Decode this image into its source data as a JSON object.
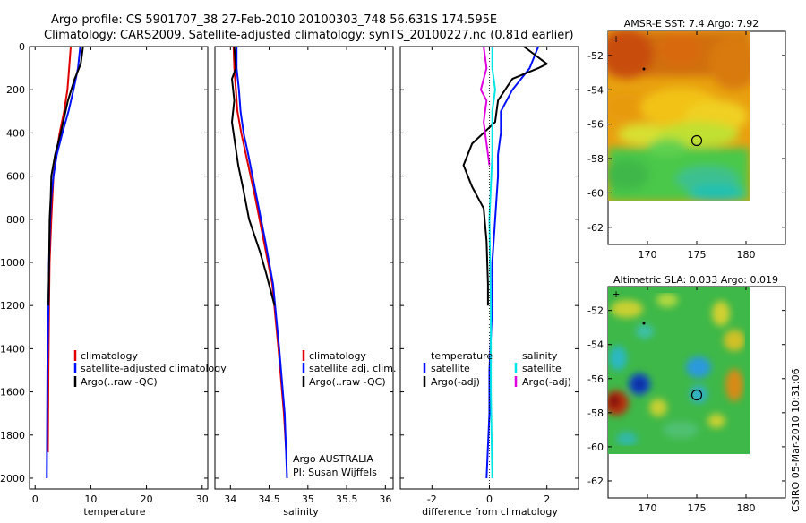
{
  "header": {
    "line1": "Argo profile: CS 5901707_38 27-Feb-2010 20100303_748 56.631S 174.595E",
    "line2": "Climatology: CARS2009. Satellite-adjusted climatology: synTS_20100227.nc (0.81d earlier)"
  },
  "side_stamp": "CSIRO 05-Mar-2010 10:31:06",
  "colors": {
    "climatology": "#e00000",
    "satellite": "#0010ff",
    "argo": "#000000",
    "satellite_salinity": "#00e5e5",
    "argo_salinity": "#e000e0"
  },
  "chart_data": [
    {
      "type": "line",
      "xlabel": "temperature",
      "xlim": [
        -1,
        31
      ],
      "ylim": [
        0,
        2050
      ],
      "y_reversed": true,
      "xticks": [
        0,
        10,
        20,
        30
      ],
      "yticks": [
        0,
        200,
        400,
        600,
        800,
        1000,
        1200,
        1400,
        1600,
        1800,
        2000
      ],
      "legend_placement": "lower-left",
      "legend": [
        "climatology",
        "satellite-adjusted climatology",
        "Argo(..raw -QC)"
      ],
      "series": [
        {
          "name": "climatology",
          "color": "#e00000",
          "x": [
            6.4,
            6.1,
            5.8,
            5.2,
            4.4,
            3.8,
            3.3,
            3.1,
            2.9,
            2.6,
            2.5,
            2.4,
            2.3
          ],
          "y": [
            0,
            100,
            200,
            300,
            400,
            500,
            600,
            700,
            800,
            1000,
            1200,
            1500,
            1880
          ]
        },
        {
          "name": "satellite-adjusted climatology",
          "color": "#0010ff",
          "x": [
            8.1,
            7.7,
            6.9,
            6.0,
            4.9,
            3.9,
            3.3,
            2.9,
            2.7,
            2.5,
            2.4,
            2.2,
            2.1
          ],
          "y": [
            0,
            100,
            200,
            300,
            400,
            500,
            600,
            700,
            800,
            1000,
            1200,
            1500,
            2000
          ]
        },
        {
          "name": "Argo(..raw -QC)",
          "color": "#000000",
          "x": [
            8.6,
            8.2,
            7.1,
            5.9,
            4.6,
            3.6,
            2.9,
            2.8,
            2.6,
            2.5,
            2.4
          ],
          "y": [
            0,
            80,
            150,
            250,
            400,
            500,
            600,
            700,
            800,
            1000,
            1200
          ]
        }
      ]
    },
    {
      "type": "line",
      "xlabel": "salinity",
      "xlim": [
        33.8,
        36.1
      ],
      "ylim": [
        0,
        2050
      ],
      "y_reversed": true,
      "xticks": [
        34,
        34.5,
        35,
        35.5,
        36
      ],
      "legend_placement": "lower-right",
      "legend": [
        "climatology",
        "satellite adj. clim.",
        "Argo(..raw -QC)"
      ],
      "annotation": [
        "Argo AUSTRALIA",
        "PI: Susan Wijffels"
      ],
      "series": [
        {
          "name": "climatology",
          "color": "#e00000",
          "x": [
            34.04,
            34.05,
            34.07,
            34.09,
            34.14,
            34.2,
            34.32,
            34.43,
            34.54,
            34.62,
            34.69,
            34.72
          ],
          "y": [
            0,
            100,
            200,
            300,
            400,
            500,
            700,
            900,
            1100,
            1400,
            1700,
            1880
          ]
        },
        {
          "name": "satellite adj. clim.",
          "color": "#0010ff",
          "x": [
            34.08,
            34.08,
            34.11,
            34.13,
            34.17,
            34.23,
            34.34,
            34.45,
            34.55,
            34.63,
            34.7,
            34.73
          ],
          "y": [
            0,
            100,
            200,
            300,
            400,
            500,
            700,
            900,
            1100,
            1400,
            1700,
            2000
          ]
        },
        {
          "name": "Argo(..raw -QC)",
          "color": "#000000",
          "x": [
            34.05,
            34.07,
            34.02,
            34.05,
            34.02,
            34.06,
            34.1,
            34.16,
            34.24,
            34.38,
            34.46,
            34.57
          ],
          "y": [
            0,
            100,
            150,
            250,
            350,
            450,
            550,
            650,
            800,
            950,
            1050,
            1200
          ]
        }
      ]
    },
    {
      "type": "line",
      "xlabel": "difference from climatology",
      "xlim": [
        -3.1,
        3.1
      ],
      "ylim": [
        0,
        2050
      ],
      "y_reversed": true,
      "xticks": [
        -2,
        0,
        2
      ],
      "legend_placement": "lower-center",
      "legend_temperature": {
        "heading": "temperature",
        "entries": [
          "satellite",
          "Argo(-adj)"
        ]
      },
      "legend_salinity": {
        "heading": "salinity",
        "entries": [
          "satellite",
          "Argo(-adj)"
        ]
      },
      "series": [
        {
          "name": "satellite",
          "group": "temperature",
          "color": "#0010ff",
          "x": [
            1.7,
            1.4,
            0.8,
            0.4,
            0.4,
            0.3,
            0.3,
            0.2,
            0.1,
            0.1,
            0.0,
            0.0,
            -0.1
          ],
          "y": [
            0,
            100,
            200,
            300,
            400,
            500,
            600,
            800,
            1000,
            1200,
            1500,
            1700,
            2000
          ]
        },
        {
          "name": "Argo(-adj)",
          "group": "temperature",
          "color": "#000000",
          "x": [
            1.2,
            2.0,
            1.7,
            0.8,
            0.3,
            0.2,
            -0.6,
            -0.9,
            -0.6,
            -0.2,
            -0.1,
            -0.05,
            -0.05
          ],
          "y": [
            0,
            80,
            100,
            150,
            250,
            350,
            450,
            550,
            650,
            750,
            900,
            1100,
            1200
          ]
        },
        {
          "name": "satellite",
          "group": "salinity",
          "color": "#00e5e5",
          "x": [
            0.1,
            0.1,
            0.2,
            0.1,
            0.1,
            0.0,
            0.05,
            0.05,
            0.1
          ],
          "y": [
            0,
            100,
            200,
            300,
            500,
            800,
            1200,
            1600,
            2000
          ]
        },
        {
          "name": "Argo(-adj)",
          "group": "salinity",
          "color": "#e000e0",
          "x": [
            -0.2,
            -0.1,
            -0.3,
            -0.1,
            -0.2,
            -0.1,
            0.0
          ],
          "y": [
            0,
            100,
            200,
            250,
            350,
            450,
            550
          ]
        }
      ]
    },
    {
      "type": "heatmap",
      "title": "AMSR-E SST: 7.4 Argo: 7.92",
      "xlim": [
        166,
        184
      ],
      "ylim": [
        -63,
        -50.6
      ],
      "xticks": [
        170,
        175,
        180
      ],
      "yticks": [
        -52,
        -54,
        -56,
        -58,
        -60,
        -62
      ],
      "data_extent": {
        "lon": [
          166,
          180.2
        ],
        "lat": [
          -60.1,
          -50.6
        ]
      },
      "marker": {
        "lon": 174.6,
        "lat": -56.6
      }
    },
    {
      "type": "heatmap",
      "title": "Altimetric SLA: 0.033 Argo: 0.019",
      "xlim": [
        166,
        184
      ],
      "ylim": [
        -63,
        -50.6
      ],
      "xticks": [
        170,
        175,
        180
      ],
      "yticks": [
        -52,
        -54,
        -56,
        -58,
        -60,
        -62
      ],
      "data_extent": {
        "lon": [
          166,
          180.2
        ],
        "lat": [
          -60.1,
          -50.6
        ]
      },
      "marker": {
        "lon": 174.6,
        "lat": -56.6
      }
    }
  ]
}
